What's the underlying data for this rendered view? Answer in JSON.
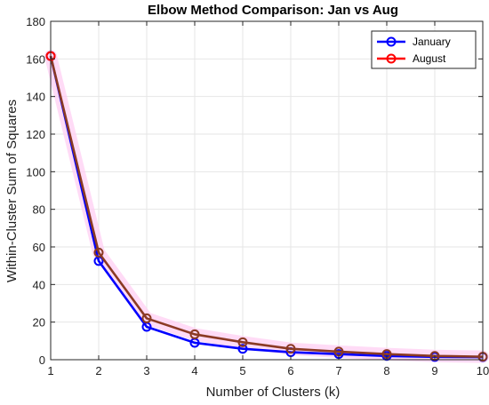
{
  "chart_data": {
    "type": "line",
    "title": "Elbow Method Comparison: Jan vs Aug",
    "xlabel": "Number of Clusters (k)",
    "ylabel": "Within-Cluster Sum of Squares",
    "x": [
      1,
      2,
      3,
      4,
      5,
      6,
      7,
      8,
      9,
      10
    ],
    "xlim": [
      1,
      10
    ],
    "ylim": [
      0,
      180
    ],
    "xticks": [
      "1",
      "2",
      "3",
      "4",
      "5",
      "6",
      "7",
      "8",
      "9",
      "10"
    ],
    "yticks": [
      "0",
      "20",
      "40",
      "60",
      "80",
      "100",
      "120",
      "140",
      "160",
      "180"
    ],
    "grid": true,
    "legend_position": "top-right",
    "series": [
      {
        "name": "January",
        "color": "#0000ff",
        "values": [
          161.5,
          52.5,
          17.5,
          9.0,
          5.8,
          4.0,
          3.0,
          2.0,
          1.5,
          1.4
        ]
      },
      {
        "name": "August",
        "color": "#ff0000",
        "values": [
          161.5,
          57.0,
          22.0,
          13.5,
          9.3,
          5.8,
          4.3,
          3.0,
          2.0,
          1.6
        ]
      }
    ],
    "overlap_color": "#8b3a24",
    "glow_color": "#ffccf2"
  }
}
